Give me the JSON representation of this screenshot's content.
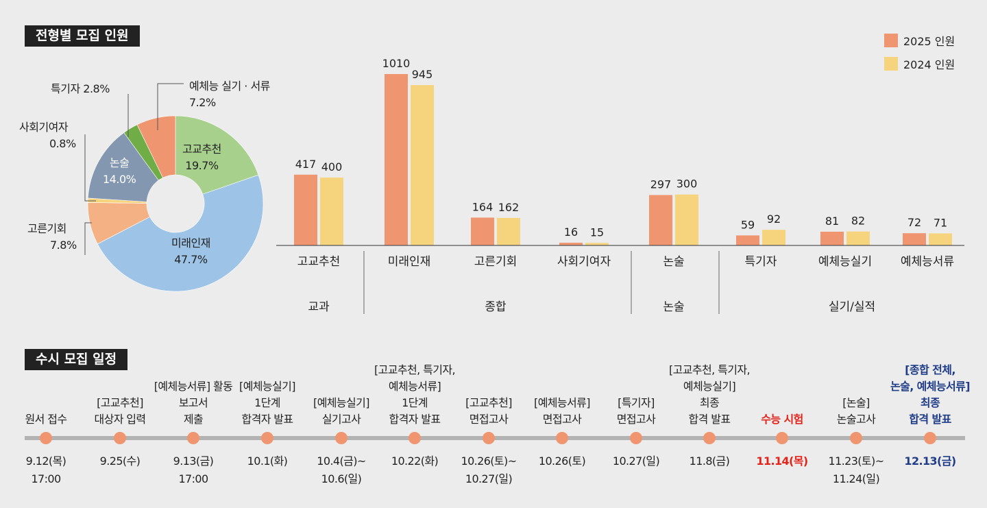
{
  "pie_section": {
    "title": "전형별 모집 인원"
  },
  "schedule_section": {
    "title": "수시 모집 일정"
  },
  "legend": [
    {
      "label": "2025 인원",
      "color": "#ef9670"
    },
    {
      "label": "2024 인원",
      "color": "#f6d47e"
    }
  ],
  "chart_data": [
    {
      "type": "pie",
      "title": "전형별 모집 인원",
      "slices": [
        {
          "name": "고교추천",
          "value": 19.7,
          "label": "19.7%",
          "color": "#a8d08d"
        },
        {
          "name": "미래인재",
          "value": 47.7,
          "label": "47.7%",
          "color": "#9dc3e6"
        },
        {
          "name": "고른기회",
          "value": 7.8,
          "label": "7.8%",
          "color": "#f4b183"
        },
        {
          "name": "사회기여자",
          "value": 0.8,
          "label": "0.8%",
          "color": "#f6d47e"
        },
        {
          "name": "논술",
          "value": 14.0,
          "label": "14.0%",
          "color": "#8497b0"
        },
        {
          "name": "특기자",
          "value": 2.8,
          "label": "2.8%",
          "color": "#70ad47"
        },
        {
          "name": "예체능 실기 · 서류",
          "value": 7.2,
          "label": "7.2%",
          "color": "#ef9670"
        }
      ]
    },
    {
      "type": "bar",
      "categories": [
        "고교추천",
        "미래인재",
        "고른기회",
        "사회기여자",
        "논술",
        "특기자",
        "예체능실기",
        "예체능서류"
      ],
      "series": [
        {
          "name": "2025 인원",
          "values": [
            417,
            1010,
            164,
            16,
            297,
            59,
            81,
            72
          ]
        },
        {
          "name": "2024 인원",
          "values": [
            400,
            945,
            162,
            15,
            300,
            92,
            82,
            71
          ]
        }
      ],
      "groups": [
        {
          "label": "교과",
          "categories": [
            "고교추천"
          ]
        },
        {
          "label": "종합",
          "categories": [
            "미래인재",
            "고른기회",
            "사회기여자"
          ]
        },
        {
          "label": "논술",
          "categories": [
            "논술"
          ]
        },
        {
          "label": "실기/실적",
          "categories": [
            "특기자",
            "예체능실기",
            "예체능서류"
          ]
        }
      ],
      "ylim": [
        0,
        1050
      ]
    }
  ],
  "timeline": [
    {
      "label": [
        "원서 접수"
      ],
      "date": [
        "9.12(목)",
        "17:00"
      ],
      "style": ""
    },
    {
      "label": [
        "[고교추천]",
        "대상자 입력"
      ],
      "date": [
        "9.25(수)"
      ],
      "style": ""
    },
    {
      "label": [
        "[예체능서류] 활동",
        "보고서",
        "제출"
      ],
      "date": [
        "9.13(금)",
        "17:00"
      ],
      "style": ""
    },
    {
      "label": [
        "[예체능실기]",
        "1단계",
        "합격자 발표"
      ],
      "date": [
        "10.1(화)"
      ],
      "style": ""
    },
    {
      "label": [
        "[예체능실기]",
        "실기고사"
      ],
      "date": [
        "10.4(금)~",
        "10.6(일)"
      ],
      "style": ""
    },
    {
      "label": [
        "[고교추천, 특기자,",
        "예체능서류]",
        "1단계",
        "합격자 발표"
      ],
      "date": [
        "10.22(화)"
      ],
      "style": ""
    },
    {
      "label": [
        "[고교추천]",
        "면접고사"
      ],
      "date": [
        "10.26(토)~",
        "10.27(일)"
      ],
      "style": ""
    },
    {
      "label": [
        "[예체능서류]",
        "면접고사"
      ],
      "date": [
        "10.26(토)"
      ],
      "style": ""
    },
    {
      "label": [
        "[특기자]",
        "면접고사"
      ],
      "date": [
        "10.27(일)"
      ],
      "style": ""
    },
    {
      "label": [
        "[고교추천, 특기자,",
        "예체능실기]",
        "최종",
        "합격 발표"
      ],
      "date": [
        "11.8(금)"
      ],
      "style": ""
    },
    {
      "label": [
        "수능 시험"
      ],
      "date": [
        "11.14(목)"
      ],
      "style": "red"
    },
    {
      "label": [
        "[논술]",
        "논술고사"
      ],
      "date": [
        "11.23(토)~",
        "11.24(일)"
      ],
      "style": ""
    },
    {
      "label": [
        "[종합 전체,",
        "논술, 예체능서류]",
        "최종",
        "합격 발표"
      ],
      "date": [
        "12.13(금)"
      ],
      "style": "blue"
    }
  ]
}
